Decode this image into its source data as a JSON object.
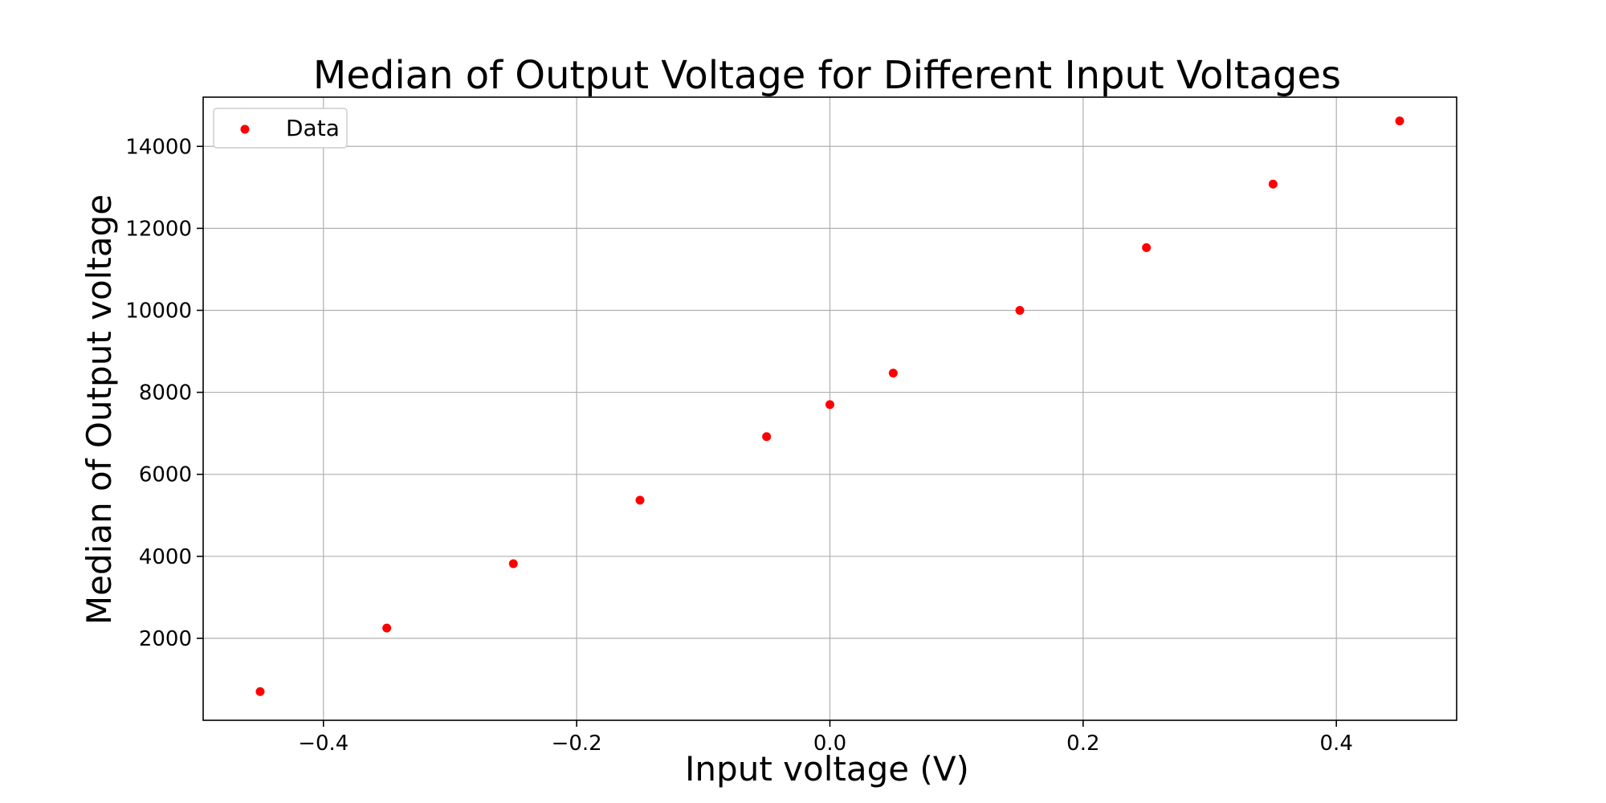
{
  "chart_data": {
    "type": "scatter",
    "title": "Median of Output Voltage for Different Input Voltages",
    "xlabel": "Input voltage (V)",
    "ylabel": "Median of Output voltage",
    "xlim": [
      -0.495,
      0.495
    ],
    "ylim": [
      0,
      15200
    ],
    "grid": true,
    "legend_placement": "top-left",
    "x_ticks": [
      -0.4,
      -0.2,
      0.0,
      0.2,
      0.4
    ],
    "x_tick_labels": [
      "−0.4",
      "−0.2",
      "0.0",
      "0.2",
      "0.4"
    ],
    "y_ticks": [
      2000,
      4000,
      6000,
      8000,
      10000,
      12000,
      14000
    ],
    "y_tick_labels": [
      "2000",
      "4000",
      "6000",
      "8000",
      "10000",
      "12000",
      "14000"
    ],
    "series": [
      {
        "name": "Data",
        "color": "#ff0000",
        "points": [
          {
            "x": -0.45,
            "y": 700
          },
          {
            "x": -0.35,
            "y": 2250
          },
          {
            "x": -0.25,
            "y": 3820
          },
          {
            "x": -0.15,
            "y": 5370
          },
          {
            "x": -0.05,
            "y": 6920
          },
          {
            "x": 0.0,
            "y": 7700
          },
          {
            "x": 0.05,
            "y": 8470
          },
          {
            "x": 0.15,
            "y": 10000
          },
          {
            "x": 0.25,
            "y": 11530
          },
          {
            "x": 0.35,
            "y": 13080
          },
          {
            "x": 0.45,
            "y": 14620
          }
        ]
      }
    ]
  }
}
